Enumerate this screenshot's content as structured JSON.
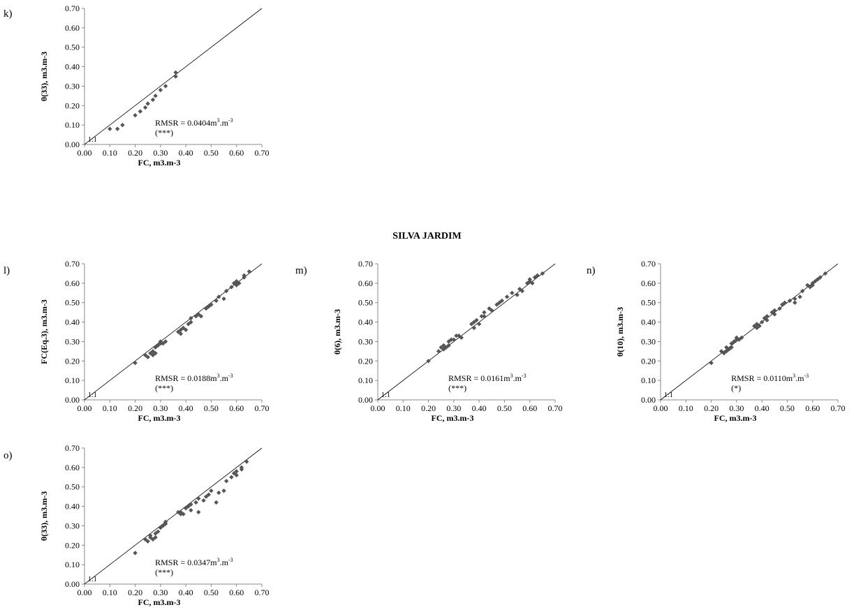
{
  "section_title": "SILVA JARDIM",
  "chart_data": [
    {
      "panel": "k)",
      "type": "scatter",
      "xlabel": "FC, m3.m-3",
      "ylabel": "θ(33), m3.m-3",
      "xlim": [
        0,
        0.7
      ],
      "ylim": [
        0,
        0.7
      ],
      "ticks": [
        "0.00",
        "0.10",
        "0.20",
        "0.30",
        "0.40",
        "0.50",
        "0.60",
        "0.70"
      ],
      "reference_line_label": "1:1",
      "rmsr": {
        "prefix": "RMSR = 0.0404m",
        "unit_mid": ".m",
        "sup": "3",
        "sup_end": "-3"
      },
      "significance": "(***)",
      "points": [
        [
          0.1,
          0.08
        ],
        [
          0.13,
          0.08
        ],
        [
          0.15,
          0.1
        ],
        [
          0.2,
          0.15
        ],
        [
          0.22,
          0.17
        ],
        [
          0.24,
          0.19
        ],
        [
          0.25,
          0.21
        ],
        [
          0.27,
          0.23
        ],
        [
          0.28,
          0.25
        ],
        [
          0.3,
          0.28
        ],
        [
          0.32,
          0.3
        ],
        [
          0.36,
          0.35
        ],
        [
          0.36,
          0.37
        ]
      ]
    },
    {
      "panel": "l)",
      "type": "scatter",
      "xlabel": "FC, m3.m-3",
      "ylabel": "FC(Eq.3), m3.m-3",
      "xlim": [
        0,
        0.7
      ],
      "ylim": [
        0,
        0.7
      ],
      "ticks": [
        "0.00",
        "0.10",
        "0.20",
        "0.30",
        "0.40",
        "0.50",
        "0.60",
        "0.70"
      ],
      "reference_line_label": "1:1",
      "rmsr": {
        "prefix": "RMSR = 0.0188m",
        "unit_mid": ".m",
        "sup": "3",
        "sup_end": "-3"
      },
      "significance": "(***)",
      "points": [
        [
          0.2,
          0.19
        ],
        [
          0.24,
          0.23
        ],
        [
          0.25,
          0.22
        ],
        [
          0.26,
          0.24
        ],
        [
          0.27,
          0.23
        ],
        [
          0.27,
          0.25
        ],
        [
          0.28,
          0.24
        ],
        [
          0.28,
          0.27
        ],
        [
          0.29,
          0.28
        ],
        [
          0.3,
          0.29
        ],
        [
          0.3,
          0.3
        ],
        [
          0.31,
          0.29
        ],
        [
          0.32,
          0.3
        ],
        [
          0.37,
          0.35
        ],
        [
          0.38,
          0.34
        ],
        [
          0.38,
          0.36
        ],
        [
          0.39,
          0.37
        ],
        [
          0.4,
          0.36
        ],
        [
          0.41,
          0.39
        ],
        [
          0.42,
          0.4
        ],
        [
          0.42,
          0.42
        ],
        [
          0.44,
          0.43
        ],
        [
          0.45,
          0.44
        ],
        [
          0.46,
          0.43
        ],
        [
          0.48,
          0.47
        ],
        [
          0.49,
          0.48
        ],
        [
          0.5,
          0.49
        ],
        [
          0.52,
          0.51
        ],
        [
          0.53,
          0.53
        ],
        [
          0.55,
          0.52
        ],
        [
          0.56,
          0.56
        ],
        [
          0.58,
          0.58
        ],
        [
          0.59,
          0.6
        ],
        [
          0.6,
          0.61
        ],
        [
          0.6,
          0.59
        ],
        [
          0.61,
          0.6
        ],
        [
          0.63,
          0.63
        ],
        [
          0.63,
          0.64
        ],
        [
          0.65,
          0.66
        ]
      ]
    },
    {
      "panel": "m)",
      "type": "scatter",
      "xlabel": "FC, m3.m-3",
      "ylabel": "θ(6), m3.m-3",
      "xlim": [
        0,
        0.7
      ],
      "ylim": [
        0,
        0.7
      ],
      "ticks": [
        "0.00",
        "0.10",
        "0.20",
        "0.30",
        "0.40",
        "0.50",
        "0.60",
        "0.70"
      ],
      "reference_line_label": "1:1",
      "rmsr": {
        "prefix": "RMSR = 0.0161m",
        "unit_mid": ".m",
        "sup": "3",
        "sup_end": "-3"
      },
      "significance": "(***)",
      "points": [
        [
          0.2,
          0.2
        ],
        [
          0.24,
          0.25
        ],
        [
          0.25,
          0.27
        ],
        [
          0.26,
          0.26
        ],
        [
          0.26,
          0.28
        ],
        [
          0.27,
          0.27
        ],
        [
          0.28,
          0.28
        ],
        [
          0.28,
          0.3
        ],
        [
          0.29,
          0.31
        ],
        [
          0.3,
          0.31
        ],
        [
          0.31,
          0.33
        ],
        [
          0.32,
          0.33
        ],
        [
          0.33,
          0.32
        ],
        [
          0.37,
          0.39
        ],
        [
          0.38,
          0.37
        ],
        [
          0.38,
          0.4
        ],
        [
          0.39,
          0.41
        ],
        [
          0.4,
          0.39
        ],
        [
          0.41,
          0.43
        ],
        [
          0.42,
          0.43
        ],
        [
          0.42,
          0.45
        ],
        [
          0.44,
          0.47
        ],
        [
          0.45,
          0.46
        ],
        [
          0.47,
          0.49
        ],
        [
          0.48,
          0.5
        ],
        [
          0.49,
          0.51
        ],
        [
          0.51,
          0.53
        ],
        [
          0.53,
          0.55
        ],
        [
          0.55,
          0.54
        ],
        [
          0.56,
          0.57
        ],
        [
          0.57,
          0.56
        ],
        [
          0.59,
          0.6
        ],
        [
          0.6,
          0.61
        ],
        [
          0.6,
          0.62
        ],
        [
          0.61,
          0.6
        ],
        [
          0.62,
          0.63
        ],
        [
          0.63,
          0.64
        ],
        [
          0.65,
          0.65
        ]
      ]
    },
    {
      "panel": "n)",
      "type": "scatter",
      "xlabel": "FC, m3.m-3",
      "ylabel": "θ(10), m3.m-3",
      "xlim": [
        0,
        0.7
      ],
      "ylim": [
        0,
        0.7
      ],
      "ticks": [
        "0.00",
        "0.10",
        "0.20",
        "0.30",
        "0.40",
        "0.50",
        "0.60",
        "0.70"
      ],
      "reference_line_label": "1:1",
      "rmsr": {
        "prefix": "RMSR = 0.0110m",
        "unit_mid": ".m",
        "sup": "3",
        "sup_end": "-3"
      },
      "significance": "(*)",
      "points": [
        [
          0.2,
          0.19
        ],
        [
          0.24,
          0.25
        ],
        [
          0.25,
          0.24
        ],
        [
          0.26,
          0.25
        ],
        [
          0.26,
          0.27
        ],
        [
          0.27,
          0.26
        ],
        [
          0.28,
          0.27
        ],
        [
          0.28,
          0.29
        ],
        [
          0.29,
          0.3
        ],
        [
          0.3,
          0.31
        ],
        [
          0.3,
          0.32
        ],
        [
          0.31,
          0.31
        ],
        [
          0.32,
          0.32
        ],
        [
          0.37,
          0.38
        ],
        [
          0.38,
          0.37
        ],
        [
          0.38,
          0.39
        ],
        [
          0.39,
          0.38
        ],
        [
          0.4,
          0.4
        ],
        [
          0.41,
          0.42
        ],
        [
          0.42,
          0.41
        ],
        [
          0.42,
          0.43
        ],
        [
          0.44,
          0.45
        ],
        [
          0.45,
          0.44
        ],
        [
          0.45,
          0.46
        ],
        [
          0.47,
          0.47
        ],
        [
          0.48,
          0.49
        ],
        [
          0.49,
          0.5
        ],
        [
          0.51,
          0.51
        ],
        [
          0.53,
          0.52
        ],
        [
          0.53,
          0.5
        ],
        [
          0.55,
          0.53
        ],
        [
          0.56,
          0.56
        ],
        [
          0.58,
          0.59
        ],
        [
          0.59,
          0.58
        ],
        [
          0.6,
          0.6
        ],
        [
          0.6,
          0.59
        ],
        [
          0.61,
          0.61
        ],
        [
          0.62,
          0.62
        ],
        [
          0.63,
          0.63
        ],
        [
          0.65,
          0.65
        ]
      ]
    },
    {
      "panel": "o)",
      "type": "scatter",
      "xlabel": "FC, m3.m-3",
      "ylabel": "θ(33), m3.m-3",
      "xlim": [
        0,
        0.7
      ],
      "ylim": [
        0,
        0.7
      ],
      "ticks": [
        "0.00",
        "0.10",
        "0.20",
        "0.30",
        "0.40",
        "0.50",
        "0.60",
        "0.70"
      ],
      "reference_line_label": "1:1",
      "rmsr": {
        "prefix": "RMSR = 0.0347m",
        "unit_mid": ".m",
        "sup": "3",
        "sup_end": "-3"
      },
      "significance": "(***)",
      "points": [
        [
          0.2,
          0.16
        ],
        [
          0.24,
          0.23
        ],
        [
          0.25,
          0.22
        ],
        [
          0.26,
          0.24
        ],
        [
          0.26,
          0.25
        ],
        [
          0.27,
          0.23
        ],
        [
          0.28,
          0.24
        ],
        [
          0.28,
          0.26
        ],
        [
          0.29,
          0.27
        ],
        [
          0.3,
          0.29
        ],
        [
          0.31,
          0.3
        ],
        [
          0.32,
          0.31
        ],
        [
          0.32,
          0.32
        ],
        [
          0.37,
          0.37
        ],
        [
          0.38,
          0.36
        ],
        [
          0.38,
          0.37
        ],
        [
          0.39,
          0.36
        ],
        [
          0.4,
          0.39
        ],
        [
          0.41,
          0.4
        ],
        [
          0.42,
          0.41
        ],
        [
          0.42,
          0.38
        ],
        [
          0.44,
          0.42
        ],
        [
          0.45,
          0.44
        ],
        [
          0.45,
          0.37
        ],
        [
          0.47,
          0.43
        ],
        [
          0.48,
          0.45
        ],
        [
          0.49,
          0.46
        ],
        [
          0.5,
          0.48
        ],
        [
          0.52,
          0.42
        ],
        [
          0.53,
          0.47
        ],
        [
          0.55,
          0.48
        ],
        [
          0.56,
          0.53
        ],
        [
          0.58,
          0.55
        ],
        [
          0.59,
          0.57
        ],
        [
          0.6,
          0.56
        ],
        [
          0.6,
          0.58
        ],
        [
          0.62,
          0.6
        ],
        [
          0.62,
          0.59
        ],
        [
          0.64,
          0.63
        ]
      ]
    }
  ]
}
